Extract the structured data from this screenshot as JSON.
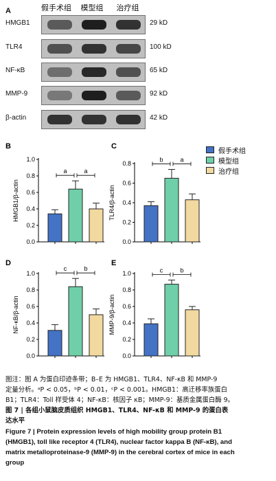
{
  "panel_a": {
    "letter": "A",
    "groups": [
      "假手术组",
      "模型组",
      "治疗组"
    ],
    "rows": [
      {
        "protein": "HMGB1",
        "kd": "29 kD",
        "intensity": [
          0.55,
          0.85,
          0.75
        ]
      },
      {
        "protein": "TLR4",
        "kd": "100 kD",
        "intensity": [
          0.6,
          0.75,
          0.65
        ]
      },
      {
        "protein": "NF-κB",
        "kd": "65 kD",
        "intensity": [
          0.45,
          0.8,
          0.6
        ]
      },
      {
        "protein": "MMP-9",
        "kd": "92 kD",
        "intensity": [
          0.4,
          0.85,
          0.55
        ]
      },
      {
        "protein": "β-actin",
        "kd": "42 kD",
        "intensity": [
          0.75,
          0.75,
          0.75
        ]
      }
    ]
  },
  "legend": {
    "items": [
      {
        "label": "假手术组",
        "color": "#4472c4"
      },
      {
        "label": "模型组",
        "color": "#6fcfa8"
      },
      {
        "label": "治疗组",
        "color": "#f2d9a0"
      }
    ]
  },
  "chart_data": [
    {
      "panel": "B",
      "type": "bar",
      "ylabel": "HMGB1/β-actin",
      "ylim": [
        0,
        1.0
      ],
      "yticks": [
        "0.0",
        "0.2",
        "0.4",
        "0.6",
        "0.8",
        "1.0"
      ],
      "values": [
        0.34,
        0.64,
        0.4
      ],
      "errors": [
        0.05,
        0.1,
        0.07
      ],
      "brackets": [
        {
          "from": 0,
          "to": 1,
          "label": "a"
        },
        {
          "from": 1,
          "to": 2,
          "label": "a"
        }
      ]
    },
    {
      "panel": "C",
      "type": "bar",
      "ylabel": "TLR4/β-actin",
      "ylim": [
        0,
        0.8
      ],
      "yticks": [
        "0.0",
        "0.2",
        "0.4",
        "0.6",
        "0.8"
      ],
      "values": [
        0.37,
        0.65,
        0.43
      ],
      "errors": [
        0.04,
        0.09,
        0.06
      ],
      "brackets": [
        {
          "from": 0,
          "to": 1,
          "label": "b"
        },
        {
          "from": 1,
          "to": 2,
          "label": "a"
        }
      ]
    },
    {
      "panel": "D",
      "type": "bar",
      "ylabel": "NF-κB/β-actin",
      "ylim": [
        0,
        1.0
      ],
      "yticks": [
        "0.0",
        "0.2",
        "0.4",
        "0.6",
        "0.8",
        "1.0"
      ],
      "values": [
        0.31,
        0.84,
        0.5
      ],
      "errors": [
        0.07,
        0.1,
        0.07
      ],
      "brackets": [
        {
          "from": 0,
          "to": 1,
          "label": "c"
        },
        {
          "from": 1,
          "to": 2,
          "label": "b"
        }
      ]
    },
    {
      "panel": "E",
      "type": "bar",
      "ylabel": "MMP-9/β-actin",
      "ylim": [
        0,
        1.0
      ],
      "yticks": [
        "0.0",
        "0.2",
        "0.4",
        "0.6",
        "0.8",
        "1.0"
      ],
      "values": [
        0.39,
        0.87,
        0.56
      ],
      "errors": [
        0.06,
        0.05,
        0.04
      ],
      "brackets": [
        {
          "from": 0,
          "to": 1,
          "label": "c"
        },
        {
          "from": 1,
          "to": 2,
          "label": "b"
        }
      ]
    }
  ],
  "caption": {
    "zh_lines": [
      "图注：图 A 为蛋白印迹条带；B–E 为 HMGB1、TLR4、NF-κB 和 MMP-9",
      "定量分析。ᵃP < 0.05，ᵇP < 0.01，ᶜP < 0.001。HMGB1：高迁移率族蛋白",
      "B1；TLR4：Toll 样受体 4；NF-κB：核因子 κB；MMP-9：基质金属蛋白酶 9。"
    ],
    "title_lines": [
      "图 7 | 各组小鼠脑皮质组织 HMGB1、TLR4、NF-κB 和 MMP-9 的蛋白表",
      "达水平"
    ],
    "en_lines": [
      "Figure 7  |  Protein expression levels of high mobility group protein B1",
      "(HMGB1), toll like receptor 4 (TLR4), nuclear factor kappa B (NF-κB), and",
      "matrix metalloproteinase-9 (MMP-9) in the cerebral cortex of mice in each",
      "group"
    ]
  }
}
